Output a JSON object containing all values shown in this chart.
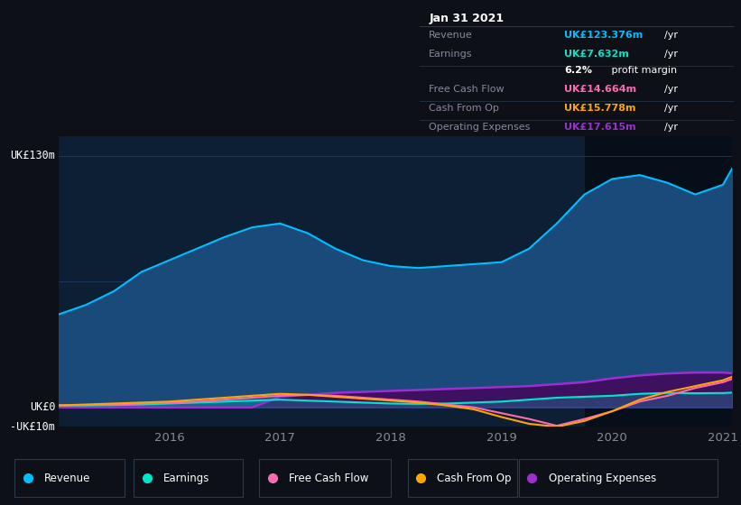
{
  "bg_color": "#0d1117",
  "plot_bg_color": "#0d1f35",
  "title_label": "UK£130m",
  "zero_label": "UK£0",
  "neg_label": "-UK£10m",
  "x_years": [
    2015.0,
    2015.25,
    2015.5,
    2015.75,
    2016.0,
    2016.25,
    2016.5,
    2016.75,
    2017.0,
    2017.25,
    2017.5,
    2017.75,
    2018.0,
    2018.25,
    2018.5,
    2018.75,
    2019.0,
    2019.25,
    2019.5,
    2019.75,
    2020.0,
    2020.25,
    2020.5,
    2020.75,
    2021.0,
    2021.083
  ],
  "revenue": [
    48,
    53,
    60,
    70,
    76,
    82,
    88,
    93,
    95,
    90,
    82,
    76,
    73,
    72,
    73,
    74,
    75,
    82,
    95,
    110,
    118,
    120,
    116,
    110,
    115,
    123.376
  ],
  "earnings": [
    1.0,
    1.0,
    1.2,
    1.5,
    2.0,
    2.5,
    3.0,
    3.5,
    4.0,
    3.5,
    3.0,
    2.5,
    2.0,
    1.8,
    2.0,
    2.5,
    3.0,
    4.0,
    5.0,
    5.5,
    6.0,
    7.0,
    7.5,
    7.3,
    7.4,
    7.632
  ],
  "free_cash_flow": [
    1.0,
    1.2,
    1.5,
    2.0,
    2.5,
    3.0,
    4.0,
    5.0,
    6.0,
    6.5,
    6.0,
    5.0,
    4.0,
    3.0,
    1.5,
    0.0,
    -3.0,
    -6.0,
    -9.5,
    -6.0,
    -2.0,
    3.0,
    6.0,
    10.0,
    13.0,
    14.664
  ],
  "cash_from_op": [
    1.0,
    1.5,
    2.0,
    2.5,
    3.0,
    4.0,
    5.0,
    6.0,
    7.0,
    6.5,
    5.5,
    4.5,
    3.5,
    2.5,
    1.0,
    -1.0,
    -5.0,
    -8.5,
    -10.0,
    -7.0,
    -2.0,
    4.0,
    8.0,
    11.0,
    14.0,
    15.778
  ],
  "op_expenses": [
    0.0,
    0.0,
    0.0,
    0.0,
    0.0,
    0.0,
    0.0,
    0.0,
    5.5,
    6.5,
    7.5,
    8.0,
    8.5,
    9.0,
    9.5,
    10.0,
    10.5,
    11.0,
    12.0,
    13.0,
    15.0,
    16.5,
    17.5,
    18.0,
    18.0,
    17.615
  ],
  "revenue_color": "#00bfff",
  "revenue_fill": "#1a4a7a",
  "earnings_color": "#00e5cc",
  "free_cash_flow_color": "#ff69b4",
  "cash_from_op_color": "#ffa500",
  "op_expenses_color": "#9b30d0",
  "op_expenses_fill": "#3d1060",
  "highlight_x_start": 2019.75,
  "highlight_x_end": 2021.083,
  "highlight_color": "#060e1a",
  "tooltip_date": "Jan 31 2021",
  "tooltip_items": [
    {
      "label": "Revenue",
      "value": "UK£123.376m",
      "unit": "/yr",
      "color": "#00bfff"
    },
    {
      "label": "Earnings",
      "value": "UK£7.632m",
      "unit": "/yr",
      "color": "#00e5cc"
    },
    {
      "label": "",
      "value": "6.2%",
      "unit": " profit margin",
      "color": "#ffffff"
    },
    {
      "label": "Free Cash Flow",
      "value": "UK£14.664m",
      "unit": "/yr",
      "color": "#ff69b4"
    },
    {
      "label": "Cash From Op",
      "value": "UK£15.778m",
      "unit": "/yr",
      "color": "#ffa500"
    },
    {
      "label": "Operating Expenses",
      "value": "UK£17.615m",
      "unit": "/yr",
      "color": "#9b30d0"
    }
  ],
  "legend_items": [
    {
      "label": "Revenue",
      "color": "#00bfff"
    },
    {
      "label": "Earnings",
      "color": "#00e5cc"
    },
    {
      "label": "Free Cash Flow",
      "color": "#ff69b4"
    },
    {
      "label": "Cash From Op",
      "color": "#ffa500"
    },
    {
      "label": "Operating Expenses",
      "color": "#9b30d0"
    }
  ],
  "ylim": [
    -10,
    140
  ],
  "xlim": [
    2015.0,
    2021.083
  ],
  "grid_color": "#1e3a5f",
  "text_color": "#888899",
  "tooltip_bg": "#080e18",
  "tooltip_border": "#2a3a4a"
}
